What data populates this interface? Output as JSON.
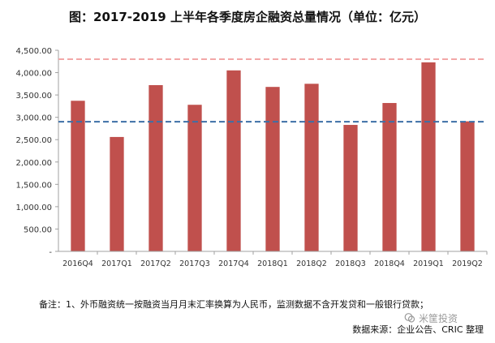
{
  "header": {
    "title": "图：2017-2019 上半年各季度房企融资总量情况（单位：亿元）"
  },
  "chart_data": {
    "type": "bar",
    "title": "图：2017-2019 上半年各季度房企融资总量情况（单位：亿元）",
    "categories": [
      "2016Q4",
      "2017Q1",
      "2017Q2",
      "2017Q3",
      "2017Q4",
      "2018Q1",
      "2018Q2",
      "2018Q3",
      "2018Q4",
      "2019Q1",
      "2019Q2"
    ],
    "values": [
      3370,
      2560,
      3720,
      3280,
      4050,
      3680,
      3750,
      2830,
      3320,
      4230,
      2910
    ],
    "y_ticks": [
      "-",
      "500.00",
      "1,000.00",
      "1,500.00",
      "2,000.00",
      "2,500.00",
      "3,000.00",
      "3,500.00",
      "4,000.00",
      "4,500.00"
    ],
    "ylim": [
      0,
      4500
    ],
    "reference_lines": [
      {
        "value": 4300,
        "style": "dashed",
        "color": "#f2a7a7"
      },
      {
        "value": 2900,
        "style": "dashed",
        "color": "#3d6fa6"
      }
    ],
    "bar_color": "#c0504d",
    "grid": false,
    "legend": "none"
  },
  "footer": {
    "note": "备注：1、外币融资统一按融资当月月末汇率换算为人民币，监测数据不含开发贷和一般银行贷款；",
    "source": "数据来源：企业公告、CRIC 整理",
    "watermark": "米筐投资"
  }
}
